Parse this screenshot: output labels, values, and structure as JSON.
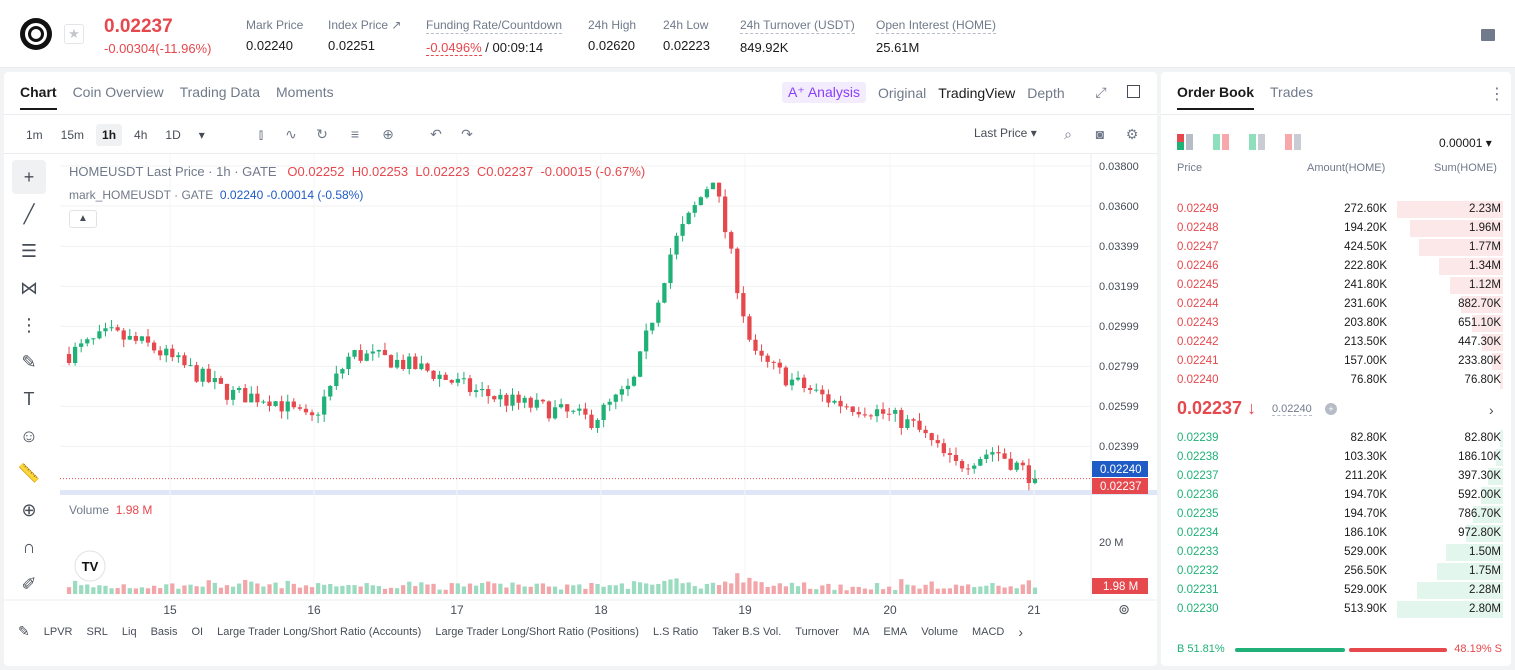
{
  "header": {
    "price": "0.02237",
    "change": "-0.00304(-11.96%)",
    "stats": [
      {
        "label": "Mark Price",
        "value": "0.02240"
      },
      {
        "label": "Index Price ↗",
        "value": "0.02251"
      },
      {
        "label": "Funding Rate/Countdown",
        "value_red": "-0.0496%",
        "value": "/ 00:09:14"
      },
      {
        "label": "24h High",
        "value": "0.02620"
      },
      {
        "label": "24h Low",
        "value": "0.02223"
      },
      {
        "label": "24h Turnover (USDT)",
        "value": "849.92K"
      },
      {
        "label": "Open Interest (HOME)",
        "value": "25.61M"
      }
    ]
  },
  "chart_tabs": [
    "Chart",
    "Coin Overview",
    "Trading Data",
    "Moments"
  ],
  "view_tabs": {
    "ai": "A⁺ Analysis",
    "original": "Original",
    "tradingview": "TradingView",
    "depth": "Depth"
  },
  "intervals": [
    "1m",
    "15m",
    "1h",
    "4h",
    "1D"
  ],
  "last_price_menu": "Last Price",
  "legend": {
    "symbol": "HOMEUSDT Last Price · 1h · GATE",
    "o": "O0.02252",
    "h": "H0.02253",
    "l": "L0.02223",
    "c": "C0.02237",
    "chg": "-0.00015 (-0.67%)",
    "mark_label": "mark_HOMEUSDT · GATE",
    "mark_val": "0.02240 -0.00014 (-0.58%)",
    "vol_label": "Volume",
    "vol_val": "1.98 M"
  },
  "bottom_indicators": [
    "LPVR",
    "SRL",
    "Liq",
    "Basis",
    "OI",
    "Large Trader Long/Short Ratio (Accounts)",
    "Large Trader Long/Short Ratio (Positions)",
    "L.S Ratio",
    "Taker B.S Vol.",
    "Turnover",
    "MA",
    "EMA",
    "Volume",
    "MACD"
  ],
  "chart_data": {
    "type": "candlestick",
    "price_axis_ticks": [
      "0.03800",
      "0.03600",
      "0.03399",
      "0.03199",
      "0.02999",
      "0.02799",
      "0.02599",
      "0.02399"
    ],
    "x_ticks": [
      "15",
      "16",
      "17",
      "18",
      "19",
      "20",
      "21"
    ],
    "volume_tick": "20 M",
    "mark_price_label": "0.02240",
    "last_price_label": "0.02237",
    "volume_label": "1.98 M",
    "key_closes": [
      0.0286,
      0.0296,
      0.029,
      0.0278,
      0.0266,
      0.0264,
      0.0252,
      0.0286,
      0.0283,
      0.0277,
      0.0268,
      0.0262,
      0.0258,
      0.0253,
      0.027,
      0.034,
      0.0375,
      0.0285,
      0.0272,
      0.0262,
      0.0258,
      0.025,
      0.023,
      0.0238,
      0.02237
    ]
  },
  "orderbook": {
    "tabs": [
      "Order Book",
      "Trades"
    ],
    "precision": "0.00001 ▾",
    "headers": {
      "price": "Price",
      "amount": "Amount(HOME)",
      "sum": "Sum(HOME)"
    },
    "asks": [
      {
        "p": "0.02249",
        "a": "272.60K",
        "s": "2.23M",
        "d": 1.0
      },
      {
        "p": "0.02248",
        "a": "194.20K",
        "s": "1.96M",
        "d": 0.88
      },
      {
        "p": "0.02247",
        "a": "424.50K",
        "s": "1.77M",
        "d": 0.79
      },
      {
        "p": "0.02246",
        "a": "222.80K",
        "s": "1.34M",
        "d": 0.6
      },
      {
        "p": "0.02245",
        "a": "241.80K",
        "s": "1.12M",
        "d": 0.5
      },
      {
        "p": "0.02244",
        "a": "231.60K",
        "s": "882.70K",
        "d": 0.4
      },
      {
        "p": "0.02243",
        "a": "203.80K",
        "s": "651.10K",
        "d": 0.29
      },
      {
        "p": "0.02242",
        "a": "213.50K",
        "s": "447.30K",
        "d": 0.2
      },
      {
        "p": "0.02241",
        "a": "157.00K",
        "s": "233.80K",
        "d": 0.1
      },
      {
        "p": "0.02240",
        "a": "76.80K",
        "s": "76.80K",
        "d": 0.03
      }
    ],
    "mid": {
      "price": "0.02237 ↓",
      "mark": "0.02240"
    },
    "bids": [
      {
        "p": "0.02239",
        "a": "82.80K",
        "s": "82.80K",
        "d": 0.03
      },
      {
        "p": "0.02238",
        "a": "103.30K",
        "s": "186.10K",
        "d": 0.07
      },
      {
        "p": "0.02237",
        "a": "211.20K",
        "s": "397.30K",
        "d": 0.14
      },
      {
        "p": "0.02236",
        "a": "194.70K",
        "s": "592.00K",
        "d": 0.21
      },
      {
        "p": "0.02235",
        "a": "194.70K",
        "s": "786.70K",
        "d": 0.28
      },
      {
        "p": "0.02234",
        "a": "186.10K",
        "s": "972.80K",
        "d": 0.35
      },
      {
        "p": "0.02233",
        "a": "529.00K",
        "s": "1.50M",
        "d": 0.54
      },
      {
        "p": "0.02232",
        "a": "256.50K",
        "s": "1.75M",
        "d": 0.62
      },
      {
        "p": "0.02231",
        "a": "529.00K",
        "s": "2.28M",
        "d": 0.81
      },
      {
        "p": "0.02230",
        "a": "513.90K",
        "s": "2.80M",
        "d": 1.0
      }
    ],
    "buy_ratio": "B 51.81%",
    "sell_ratio": "48.19% S"
  },
  "colors": {
    "up": "#1fb177",
    "down": "#e5484d"
  }
}
